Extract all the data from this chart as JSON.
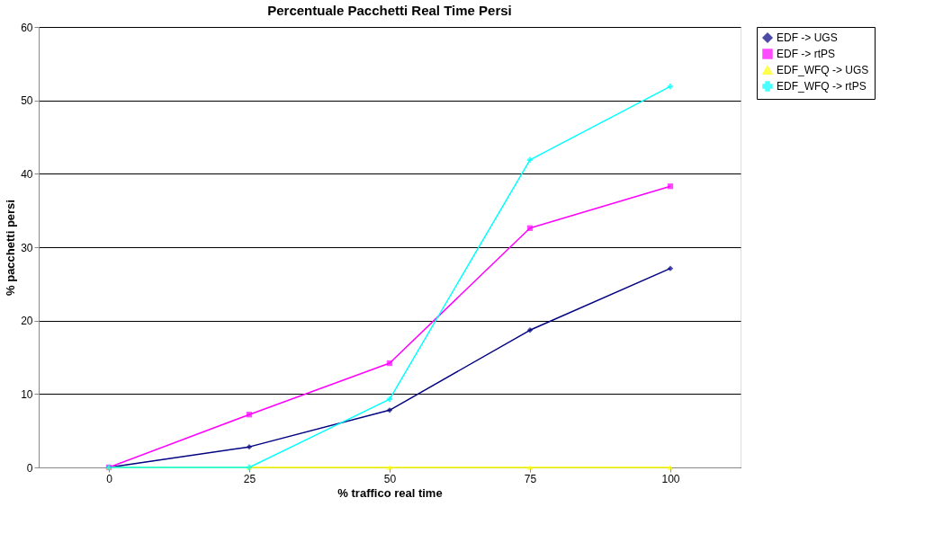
{
  "chart_data": {
    "type": "line",
    "title": "Percentuale Pacchetti Real Time Persi",
    "xlabel": "% traffico real time",
    "ylabel": "% pacchetti persi",
    "categories": [
      "0",
      "25",
      "50",
      "75",
      "100"
    ],
    "series": [
      {
        "name": "EDF -> UGS",
        "color": "#000080",
        "marker": "diamond",
        "values": [
          0,
          2.8,
          7.8,
          18.7,
          27.1
        ]
      },
      {
        "name": "EDF -> rtPS",
        "color": "#ff00ff",
        "marker": "square",
        "values": [
          0,
          7.2,
          14.2,
          32.6,
          38.3
        ]
      },
      {
        "name": "EDF_WFQ -> UGS",
        "color": "#ffff00",
        "marker": "triangle",
        "values": [
          0,
          0,
          0,
          0,
          0
        ]
      },
      {
        "name": "EDF_WFQ -> rtPS",
        "color": "#00ffff",
        "marker": "cross",
        "values": [
          0,
          0,
          9.3,
          41.9,
          51.9
        ]
      }
    ],
    "ylim": [
      0,
      60
    ],
    "yticks": [
      0,
      10,
      20,
      30,
      40,
      50,
      60
    ],
    "grid": "y",
    "legend": "right",
    "line_style": "solid"
  }
}
